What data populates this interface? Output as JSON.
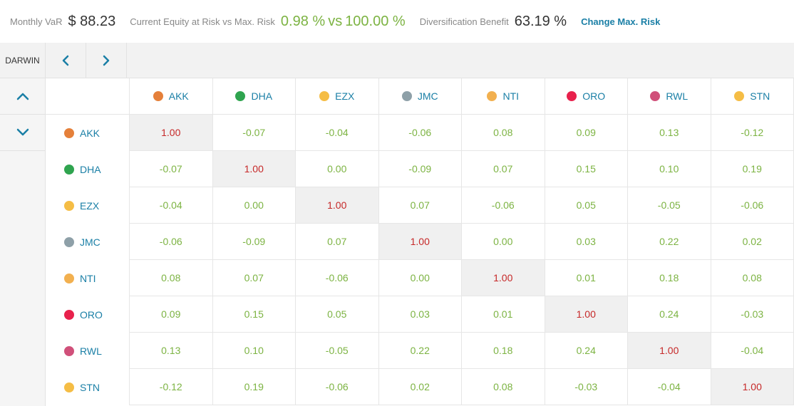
{
  "stats": {
    "var_label": "Monthly VaR",
    "var_value": "$ 88.23",
    "risk_label": "Current Equity at Risk vs Max. Risk",
    "risk_current": "0.98 %",
    "risk_vs": "vs",
    "risk_max": "100.00 %",
    "div_label": "Diversification Benefit",
    "div_value": "63.19 %",
    "change_link": "Change Max. Risk"
  },
  "toolbar": {
    "darwin_label": "DARWIN",
    "prev_icon": "chevron-left-icon",
    "next_icon": "chevron-right-icon"
  },
  "scroll": {
    "up_icon": "chevron-up-icon",
    "down_icon": "chevron-down-icon"
  },
  "colors": {
    "link": "#1a7fa6",
    "positive": "#7cb342",
    "diagonal": "#c62828"
  },
  "darwins": [
    {
      "name": "AKK",
      "color": "#e5803a"
    },
    {
      "name": "DHA",
      "color": "#2fa44f"
    },
    {
      "name": "EZX",
      "color": "#f5bd45"
    },
    {
      "name": "JMC",
      "color": "#8ea0a8"
    },
    {
      "name": "NTI",
      "color": "#f2b04f"
    },
    {
      "name": "ORO",
      "color": "#e8214c"
    },
    {
      "name": "RWL",
      "color": "#d0507a"
    },
    {
      "name": "STN",
      "color": "#f5bd45"
    }
  ],
  "matrix": [
    [
      "1.00",
      "-0.07",
      "-0.04",
      "-0.06",
      "0.08",
      "0.09",
      "0.13",
      "-0.12"
    ],
    [
      "-0.07",
      "1.00",
      "0.00",
      "-0.09",
      "0.07",
      "0.15",
      "0.10",
      "0.19"
    ],
    [
      "-0.04",
      "0.00",
      "1.00",
      "0.07",
      "-0.06",
      "0.05",
      "-0.05",
      "-0.06"
    ],
    [
      "-0.06",
      "-0.09",
      "0.07",
      "1.00",
      "0.00",
      "0.03",
      "0.22",
      "0.02"
    ],
    [
      "0.08",
      "0.07",
      "-0.06",
      "0.00",
      "1.00",
      "0.01",
      "0.18",
      "0.08"
    ],
    [
      "0.09",
      "0.15",
      "0.05",
      "0.03",
      "0.01",
      "1.00",
      "0.24",
      "-0.03"
    ],
    [
      "0.13",
      "0.10",
      "-0.05",
      "0.22",
      "0.18",
      "0.24",
      "1.00",
      "-0.04"
    ],
    [
      "-0.12",
      "0.19",
      "-0.06",
      "0.02",
      "0.08",
      "-0.03",
      "-0.04",
      "1.00"
    ]
  ]
}
